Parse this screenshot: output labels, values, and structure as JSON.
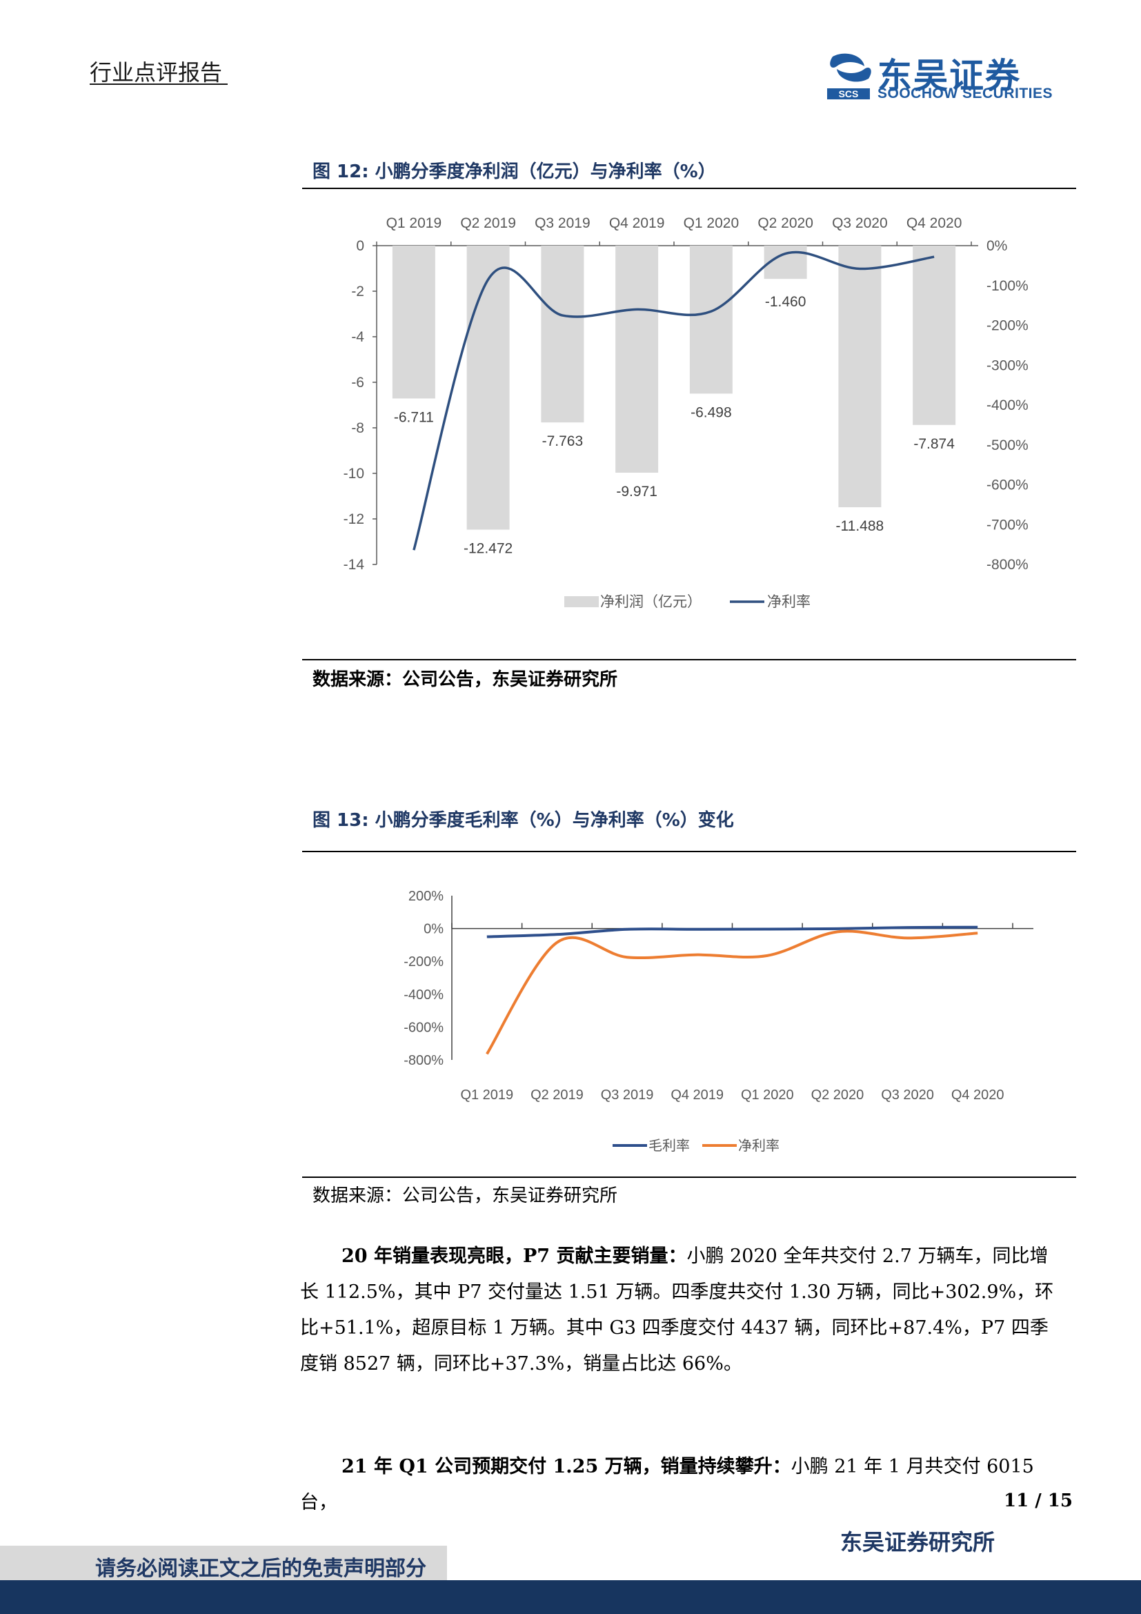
{
  "header": {
    "label": "行业点评报告"
  },
  "logo": {
    "cn": "东吴证券",
    "en": "SOOCHOW SECURITIES",
    "mark": "SCS"
  },
  "figure12": {
    "title": "图 12:  小鹏分季度净利润（亿元）与净利率（%）",
    "source": "数据来源：公司公告，东吴证券研究所",
    "chart_data": {
      "type": "bar",
      "categories": [
        "Q1 2019",
        "Q2 2019",
        "Q3 2019",
        "Q4 2019",
        "Q1 2020",
        "Q2 2020",
        "Q3 2020",
        "Q4 2020"
      ],
      "series": [
        {
          "name": "净利润（亿元）",
          "type": "bar",
          "axis": "left",
          "values": [
            -6.711,
            -12.472,
            -7.763,
            -9.971,
            -6.498,
            -1.46,
            -11.488,
            -7.874
          ],
          "labels": [
            "-6.711",
            "-12.472",
            "-7.763",
            "-9.971",
            "-6.498",
            "-1.460",
            "-11.488",
            "-7.874"
          ],
          "color": "#d9d9d9"
        },
        {
          "name": "净利率",
          "type": "line",
          "axis": "right",
          "values": [
            -764,
            -85,
            -175,
            -160,
            -165,
            -20,
            -58,
            -28
          ],
          "color": "#2e4f7f"
        }
      ],
      "left_axis": {
        "ticks": [
          "0",
          "-2",
          "-4",
          "-6",
          "-8",
          "-10",
          "-12",
          "-14"
        ],
        "range": [
          -14,
          0
        ]
      },
      "right_axis": {
        "ticks": [
          "0%",
          "-100%",
          "-200%",
          "-300%",
          "-400%",
          "-500%",
          "-600%",
          "-700%",
          "-800%"
        ],
        "range": [
          -800,
          0
        ]
      },
      "legend": "bottom"
    }
  },
  "figure13": {
    "title": "图 13:  小鹏分季度毛利率（%）与净利率（%）变化",
    "source": "数据来源：公司公告，东吴证券研究所",
    "chart_data": {
      "type": "line",
      "categories": [
        "Q1 2019",
        "Q2 2019",
        "Q3 2019",
        "Q4 2019",
        "Q1 2020",
        "Q2 2020",
        "Q3 2020",
        "Q4 2020"
      ],
      "series": [
        {
          "name": "毛利率",
          "values": [
            -50,
            -36,
            -5,
            -5,
            -4,
            -1,
            6,
            8
          ],
          "color": "#2e4f8c"
        },
        {
          "name": "净利率",
          "values": [
            -764,
            -85,
            -175,
            -160,
            -165,
            -20,
            -58,
            -28
          ],
          "color": "#ed7d31"
        }
      ],
      "y_axis": {
        "ticks": [
          "200%",
          "0%",
          "-200%",
          "-400%",
          "-600%",
          "-800%"
        ],
        "range": [
          -800,
          200
        ]
      },
      "legend": "bottom"
    }
  },
  "paragraphs": [
    {
      "bold": "20 年销量表现亮眼，P7 贡献主要销量：",
      "text": "小鹏 2020 全年共交付 2.7 万辆车，同比增长 112.5%，其中 P7 交付量达 1.51 万辆。四季度共交付 1.30 万辆，同比+302.9%，环比+51.1%，超原目标 1 万辆。其中 G3 四季度交付 4437 辆，同环比+87.4%，P7 四季度销 8527 辆，同环比+37.3%，销量占比达 66%。"
    },
    {
      "bold": "21 年 Q1 公司预期交付 1.25 万辆，销量持续攀升：",
      "text": "小鹏 21 年 1 月共交付 6015 台，"
    }
  ],
  "footer": {
    "page": "11 / 15",
    "institute": "东吴证券研究所",
    "disclaimer": "请务必阅读正文之后的免责声明部分"
  }
}
